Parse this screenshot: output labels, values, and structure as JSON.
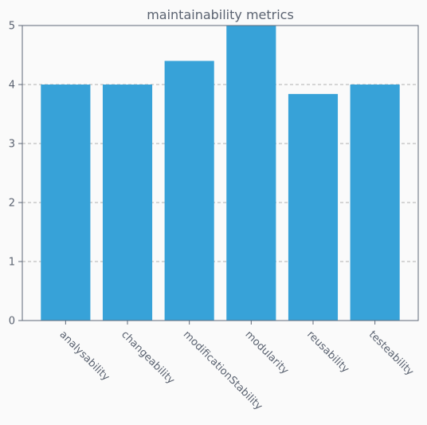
{
  "chart_data": {
    "type": "bar",
    "title": "maintainability metrics",
    "xlabel": "",
    "ylabel": "",
    "categories": [
      "analysability",
      "changeability",
      "modificationStability",
      "modularity",
      "reusability",
      "testeability"
    ],
    "values": [
      4.0,
      4.0,
      4.4,
      5.0,
      3.84,
      4.0
    ],
    "ylim": [
      0,
      5
    ],
    "yticks": [
      "0",
      "1",
      "2",
      "3",
      "4",
      "5"
    ],
    "grid": "horizontal-dashed",
    "bar_color": "#37a2d8"
  }
}
